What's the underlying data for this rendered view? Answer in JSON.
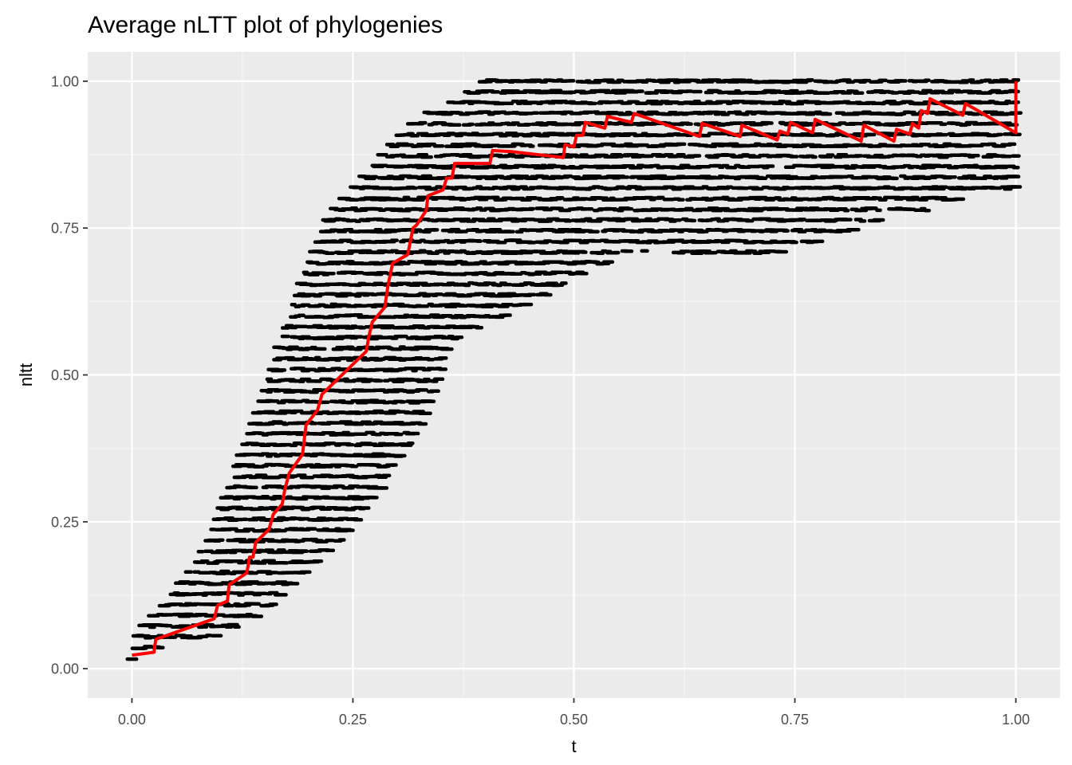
{
  "chart_data": {
    "type": "line",
    "title": "Average nLTT plot of phylogenies",
    "xlabel": "t",
    "ylabel": "nltt",
    "xlim": [
      -0.05,
      1.05
    ],
    "ylim": [
      -0.05,
      1.05
    ],
    "x_ticks": [
      0,
      0.25,
      0.5,
      0.75,
      1
    ],
    "x_tick_labels": [
      "0.00",
      "0.25",
      "0.50",
      "0.75",
      "1.00"
    ],
    "y_ticks": [
      0,
      0.25,
      0.5,
      0.75,
      1
    ],
    "y_tick_labels": [
      "0.00",
      "0.25",
      "0.50",
      "0.75",
      "1.00"
    ],
    "grid": true,
    "legend": "none",
    "colors": {
      "panel": "#ebebeb",
      "grid_major": "#ffffff",
      "grid_minor": "#f5f5f5",
      "points": "#000000",
      "average_line": "#ff0000"
    },
    "series": [
      {
        "kind": "scatter-band",
        "color": "#000000",
        "lower": [
          [
            0.0,
            0.02
          ],
          [
            0.03,
            0.04
          ],
          [
            0.1,
            0.06
          ],
          [
            0.15,
            0.1
          ],
          [
            0.2,
            0.17
          ],
          [
            0.25,
            0.24
          ],
          [
            0.3,
            0.35
          ],
          [
            0.33,
            0.42
          ],
          [
            0.36,
            0.55
          ],
          [
            0.4,
            0.59
          ],
          [
            0.45,
            0.62
          ],
          [
            0.5,
            0.67
          ],
          [
            0.55,
            0.7
          ],
          [
            0.6,
            0.72
          ],
          [
            0.65,
            0.7
          ],
          [
            0.7,
            0.7
          ],
          [
            0.75,
            0.72
          ],
          [
            0.8,
            0.74
          ],
          [
            0.85,
            0.77
          ],
          [
            0.89,
            0.78
          ],
          [
            0.95,
            0.81
          ],
          [
            1.0,
            0.82
          ]
        ],
        "upper": [
          [
            0.0,
            0.05
          ],
          [
            0.03,
            0.1
          ],
          [
            0.07,
            0.17
          ],
          [
            0.1,
            0.27
          ],
          [
            0.15,
            0.47
          ],
          [
            0.18,
            0.62
          ],
          [
            0.22,
            0.77
          ],
          [
            0.27,
            0.85
          ],
          [
            0.3,
            0.91
          ],
          [
            0.33,
            0.94
          ],
          [
            0.36,
            0.96
          ],
          [
            0.4,
            1.0
          ],
          [
            1.0,
            1.0
          ]
        ]
      },
      {
        "kind": "line",
        "color": "#ff0000",
        "points": [
          [
            0.0,
            0.023
          ],
          [
            0.025,
            0.028
          ],
          [
            0.027,
            0.05
          ],
          [
            0.093,
            0.085
          ],
          [
            0.097,
            0.108
          ],
          [
            0.108,
            0.115
          ],
          [
            0.11,
            0.143
          ],
          [
            0.13,
            0.163
          ],
          [
            0.133,
            0.19
          ],
          [
            0.137,
            0.19
          ],
          [
            0.14,
            0.215
          ],
          [
            0.155,
            0.237
          ],
          [
            0.16,
            0.263
          ],
          [
            0.17,
            0.28
          ],
          [
            0.173,
            0.305
          ],
          [
            0.178,
            0.333
          ],
          [
            0.193,
            0.365
          ],
          [
            0.197,
            0.415
          ],
          [
            0.21,
            0.44
          ],
          [
            0.215,
            0.467
          ],
          [
            0.265,
            0.54
          ],
          [
            0.268,
            0.565
          ],
          [
            0.272,
            0.59
          ],
          [
            0.286,
            0.615
          ],
          [
            0.29,
            0.655
          ],
          [
            0.295,
            0.69
          ],
          [
            0.312,
            0.705
          ],
          [
            0.318,
            0.75
          ],
          [
            0.322,
            0.755
          ],
          [
            0.333,
            0.78
          ],
          [
            0.335,
            0.805
          ],
          [
            0.352,
            0.815
          ],
          [
            0.356,
            0.835
          ],
          [
            0.362,
            0.835
          ],
          [
            0.365,
            0.86
          ],
          [
            0.405,
            0.86
          ],
          [
            0.408,
            0.882
          ],
          [
            0.43,
            0.88
          ],
          [
            0.488,
            0.87
          ],
          [
            0.49,
            0.892
          ],
          [
            0.5,
            0.888
          ],
          [
            0.503,
            0.908
          ],
          [
            0.51,
            0.908
          ],
          [
            0.513,
            0.93
          ],
          [
            0.535,
            0.92
          ],
          [
            0.538,
            0.94
          ],
          [
            0.565,
            0.93
          ],
          [
            0.568,
            0.945
          ],
          [
            0.642,
            0.906
          ],
          [
            0.645,
            0.928
          ],
          [
            0.688,
            0.906
          ],
          [
            0.69,
            0.925
          ],
          [
            0.73,
            0.9
          ],
          [
            0.733,
            0.915
          ],
          [
            0.742,
            0.91
          ],
          [
            0.745,
            0.93
          ],
          [
            0.77,
            0.912
          ],
          [
            0.773,
            0.935
          ],
          [
            0.825,
            0.898
          ],
          [
            0.828,
            0.925
          ],
          [
            0.862,
            0.898
          ],
          [
            0.865,
            0.918
          ],
          [
            0.88,
            0.91
          ],
          [
            0.883,
            0.928
          ],
          [
            0.89,
            0.92
          ],
          [
            0.893,
            0.95
          ],
          [
            0.9,
            0.945
          ],
          [
            0.903,
            0.97
          ],
          [
            0.94,
            0.942
          ],
          [
            0.943,
            0.962
          ],
          [
            1.0,
            0.912
          ],
          [
            1.0,
            1.0
          ]
        ]
      }
    ]
  }
}
